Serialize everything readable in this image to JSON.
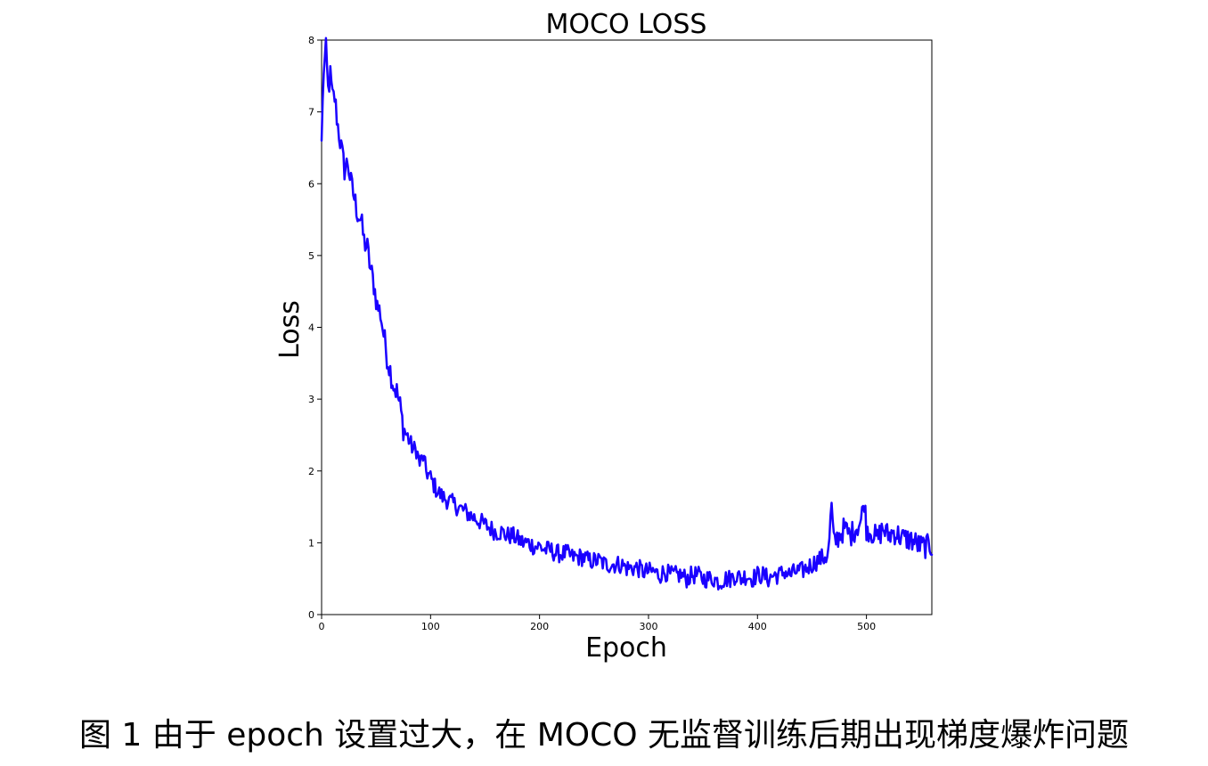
{
  "chart_data": {
    "type": "line",
    "title": "MOCO LOSS",
    "xlabel": "Epoch",
    "ylabel": "Loss",
    "xlim": [
      0,
      560
    ],
    "ylim": [
      0,
      8
    ],
    "x_ticks": [
      0,
      100,
      200,
      300,
      400,
      500
    ],
    "y_ticks": [
      0,
      1,
      2,
      3,
      4,
      5,
      6,
      7,
      8
    ],
    "grid": false,
    "legend": "none",
    "series": [
      {
        "color": "#1a00ff",
        "x": [
          0,
          2,
          4,
          6,
          8,
          10,
          12,
          15,
          18,
          21,
          24,
          27,
          30,
          33,
          36,
          39,
          42,
          45,
          48,
          51,
          54,
          57,
          60,
          63,
          66,
          69,
          72,
          75,
          78,
          81,
          84,
          87,
          90,
          93,
          96,
          100,
          105,
          110,
          115,
          120,
          125,
          130,
          135,
          140,
          145,
          150,
          155,
          160,
          165,
          170,
          175,
          180,
          185,
          190,
          195,
          200,
          205,
          210,
          215,
          220,
          225,
          230,
          235,
          240,
          245,
          250,
          255,
          260,
          265,
          270,
          275,
          280,
          285,
          290,
          295,
          300,
          305,
          310,
          315,
          320,
          325,
          330,
          335,
          340,
          345,
          350,
          355,
          360,
          365,
          370,
          375,
          380,
          385,
          390,
          395,
          400,
          405,
          410,
          415,
          420,
          425,
          430,
          435,
          440,
          445,
          450,
          455,
          460,
          465,
          468,
          470,
          475,
          480,
          485,
          490,
          495,
          498,
          500,
          505,
          510,
          515,
          520,
          525,
          530,
          535,
          540,
          545,
          550,
          555,
          560
        ],
        "values": [
          6.6,
          7.6,
          7.85,
          7.3,
          7.5,
          7.2,
          7.2,
          6.8,
          6.5,
          6.2,
          6.3,
          6.0,
          5.8,
          5.6,
          5.5,
          5.2,
          5.1,
          4.8,
          4.6,
          4.3,
          4.2,
          3.9,
          3.6,
          3.4,
          3.2,
          3.1,
          2.9,
          2.6,
          2.5,
          2.4,
          2.3,
          2.3,
          2.1,
          2.2,
          2.0,
          1.9,
          1.75,
          1.65,
          1.6,
          1.55,
          1.5,
          1.45,
          1.4,
          1.35,
          1.3,
          1.25,
          1.2,
          1.15,
          1.15,
          1.1,
          1.1,
          1.05,
          1.0,
          1.0,
          0.95,
          0.95,
          0.9,
          0.9,
          0.85,
          0.85,
          0.85,
          0.8,
          0.8,
          0.8,
          0.75,
          0.75,
          0.75,
          0.7,
          0.7,
          0.7,
          0.7,
          0.65,
          0.65,
          0.65,
          0.6,
          0.6,
          0.6,
          0.55,
          0.6,
          0.55,
          0.55,
          0.55,
          0.5,
          0.55,
          0.55,
          0.5,
          0.5,
          0.5,
          0.45,
          0.5,
          0.5,
          0.55,
          0.5,
          0.55,
          0.5,
          0.55,
          0.55,
          0.5,
          0.55,
          0.55,
          0.6,
          0.55,
          0.6,
          0.6,
          0.65,
          0.7,
          0.75,
          0.8,
          0.85,
          1.5,
          1.0,
          1.1,
          1.2,
          1.1,
          1.2,
          1.3,
          1.6,
          1.2,
          1.15,
          1.05,
          1.2,
          1.1,
          1.15,
          1.1,
          1.05,
          1.05,
          1.0,
          0.95,
          0.95,
          0.95
        ]
      }
    ]
  },
  "caption": "图 1  由于 epoch 设置过大，在 MOCO 无监督训练后期出现梯度爆炸问题"
}
